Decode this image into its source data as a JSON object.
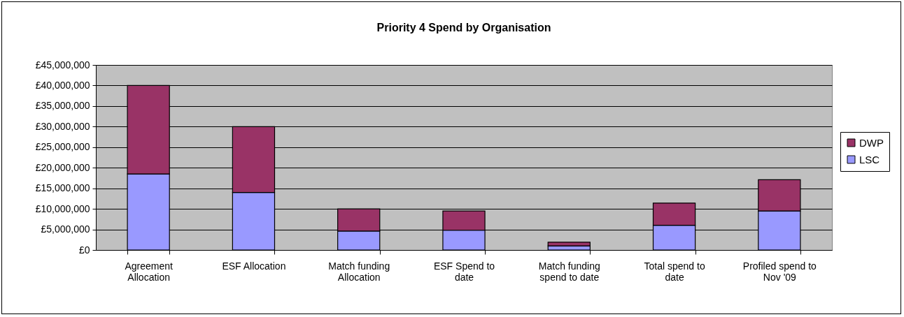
{
  "chart_data": {
    "type": "bar",
    "title": "Priority 4 Spend by Organisation",
    "stacked": true,
    "categories": [
      "Agreement Allocation",
      "ESF Allocation",
      "Match funding Allocation",
      "ESF Spend to date",
      "Match funding spend to date",
      "Total spend to date",
      "Profiled spend to Nov '09"
    ],
    "series": [
      {
        "name": "LSC",
        "color": "#9999ff",
        "values": [
          18500000,
          14000000,
          4600000,
          4800000,
          1000000,
          6000000,
          9500000
        ]
      },
      {
        "name": "DWP",
        "color": "#993366",
        "values": [
          21500000,
          16000000,
          5400000,
          4700000,
          900000,
          5400000,
          7600000
        ]
      }
    ],
    "ylim": [
      0,
      45000000
    ],
    "yticks": [
      {
        "value": 0,
        "label": "£0"
      },
      {
        "value": 5000000,
        "label": "£5,000,000"
      },
      {
        "value": 10000000,
        "label": "£10,000,000"
      },
      {
        "value": 15000000,
        "label": "£15,000,000"
      },
      {
        "value": 20000000,
        "label": "£20,000,000"
      },
      {
        "value": 25000000,
        "label": "£25,000,000"
      },
      {
        "value": 30000000,
        "label": "£30,000,000"
      },
      {
        "value": 35000000,
        "label": "£35,000,000"
      },
      {
        "value": 40000000,
        "label": "£40,000,000"
      },
      {
        "value": 45000000,
        "label": "£45,000,000"
      }
    ],
    "grid": "y",
    "legend": "right"
  }
}
